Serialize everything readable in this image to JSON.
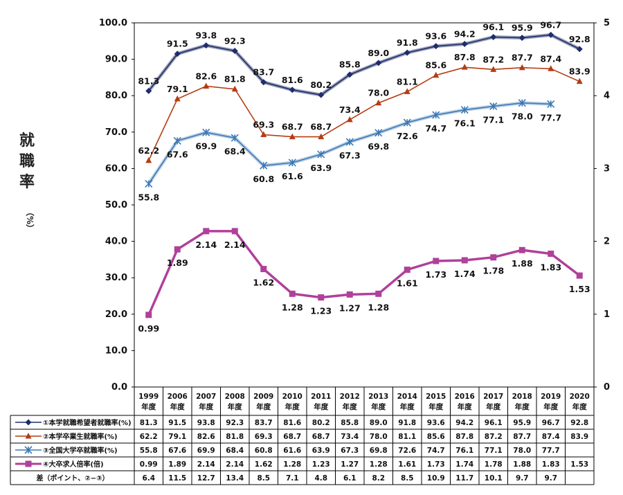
{
  "chart_data": {
    "type": "line",
    "ylabel": "就職率",
    "ylabel_unit": "（%）",
    "ylim": [
      0,
      100
    ],
    "y_ticks": [
      "0.0",
      "10.0",
      "20.0",
      "30.0",
      "40.0",
      "50.0",
      "60.0",
      "70.0",
      "80.0",
      "90.0",
      "100.0"
    ],
    "y2lim": [
      0,
      5
    ],
    "y2_ticks": [
      "0",
      "1",
      "2",
      "3",
      "4",
      "5"
    ],
    "categories": [
      [
        "1999",
        "年度"
      ],
      [
        "2006",
        "年度"
      ],
      [
        "2007",
        "年度"
      ],
      [
        "2008",
        "年度"
      ],
      [
        "2009",
        "年度"
      ],
      [
        "2010",
        "年度"
      ],
      [
        "2011",
        "年度"
      ],
      [
        "2012",
        "年度"
      ],
      [
        "2013",
        "年度"
      ],
      [
        "2014",
        "年度"
      ],
      [
        "2015",
        "年度"
      ],
      [
        "2016",
        "年度"
      ],
      [
        "2017",
        "年度"
      ],
      [
        "2018",
        "年度"
      ],
      [
        "2019",
        "年度"
      ],
      [
        "2020",
        "年度"
      ]
    ],
    "series": [
      {
        "name": "①本学就職希望者就職率(%)",
        "axis": "left",
        "color": "#1f2d6b",
        "marker": "diamond",
        "values": [
          81.3,
          91.5,
          93.8,
          92.3,
          83.7,
          81.6,
          80.2,
          85.8,
          89.0,
          91.8,
          93.6,
          94.2,
          96.1,
          95.9,
          96.7,
          92.8
        ],
        "labels": [
          "81.3",
          "91.5",
          "93.8",
          "92.3",
          "83.7",
          "81.6",
          "80.2",
          "85.8",
          "89.0",
          "91.8",
          "93.6",
          "94.2",
          "96.1",
          "95.9",
          "96.7",
          "92.8"
        ]
      },
      {
        "name": "②本学卒業生就職率(%)",
        "axis": "left",
        "color": "#b43c14",
        "marker": "triangle",
        "values": [
          62.2,
          79.1,
          82.6,
          81.8,
          69.3,
          68.7,
          68.7,
          73.4,
          78.0,
          81.1,
          85.6,
          87.8,
          87.2,
          87.7,
          87.4,
          83.9
        ],
        "labels": [
          "62.2",
          "79.1",
          "82.6",
          "81.8",
          "69.3",
          "68.7",
          "68.7",
          "73.4",
          "78.0",
          "81.1",
          "85.6",
          "87.8",
          "87.2",
          "87.7",
          "87.4",
          "83.9"
        ]
      },
      {
        "name": "③全国大学卒就職率(%)",
        "axis": "left",
        "color": "#3c78b4",
        "marker": "star",
        "values": [
          55.8,
          67.6,
          69.9,
          68.4,
          60.8,
          61.6,
          63.9,
          67.3,
          69.8,
          72.6,
          74.7,
          76.1,
          77.1,
          78.0,
          77.7,
          null
        ],
        "labels": [
          "55.8",
          "67.6",
          "69.9",
          "68.4",
          "60.8",
          "61.6",
          "63.9",
          "67.3",
          "69.8",
          "72.6",
          "74.7",
          "76.1",
          "77.1",
          "78.0",
          "77.7",
          ""
        ]
      },
      {
        "name": "④大卒求人倍率(倍)",
        "axis": "right",
        "color": "#b0409a",
        "marker": "square",
        "values": [
          0.99,
          1.89,
          2.14,
          2.14,
          1.62,
          1.28,
          1.23,
          1.27,
          1.28,
          1.61,
          1.73,
          1.74,
          1.78,
          1.88,
          1.83,
          1.53
        ],
        "labels": [
          "0.99",
          "1.89",
          "2.14",
          "2.14",
          "1.62",
          "1.28",
          "1.23",
          "1.27",
          "1.28",
          "1.61",
          "1.73",
          "1.74",
          "1.78",
          "1.88",
          "1.83",
          "1.53"
        ]
      }
    ],
    "diff_row": {
      "name": "差（ポイント、②−③）",
      "labels": [
        "6.4",
        "11.5",
        "12.7",
        "13.4",
        "8.5",
        "7.1",
        "4.8",
        "6.1",
        "8.2",
        "8.5",
        "10.9",
        "11.7",
        "10.1",
        "9.7",
        "9.7",
        ""
      ]
    },
    "grid": false,
    "legend": "table-below"
  }
}
